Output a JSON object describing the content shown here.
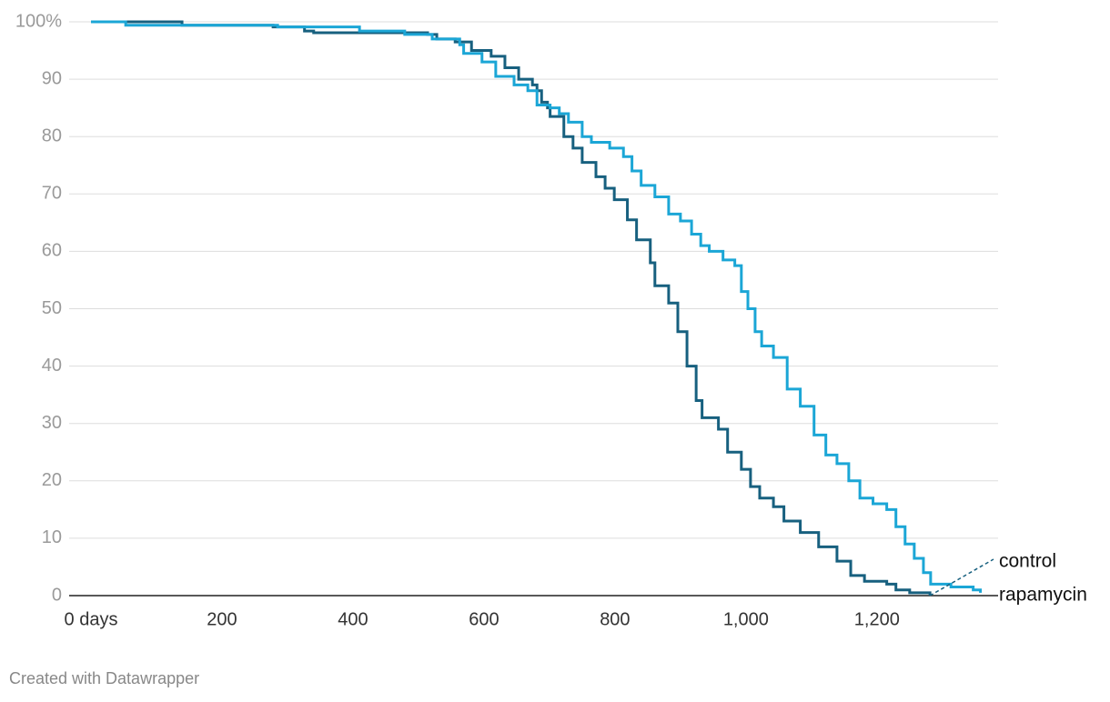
{
  "chart_data": {
    "type": "line",
    "step": true,
    "credit": "Created with Datawrapper",
    "xlim": [
      0,
      1385
    ],
    "ylim": [
      0,
      100
    ],
    "xticks": [
      {
        "value": 0,
        "label": "0 days"
      },
      200,
      400,
      600,
      800,
      {
        "value": 1000,
        "label": "1,000"
      },
      {
        "value": 1200,
        "label": "1,200"
      }
    ],
    "yticks": [
      0,
      10,
      20,
      30,
      40,
      50,
      60,
      70,
      80,
      90,
      {
        "value": 100,
        "label": "100%"
      }
    ],
    "grid": true,
    "series": [
      {
        "name": "control",
        "color": "#17607f",
        "x": [
          0,
          139,
          278,
          326,
          340,
          514,
          528,
          556,
          581,
          611,
          632,
          653,
          674,
          681,
          688,
          697,
          701,
          722,
          736,
          750,
          771,
          785,
          799,
          819,
          833,
          854,
          861,
          882,
          896,
          910,
          924,
          933,
          958,
          972,
          993,
          1007,
          1021,
          1042,
          1058,
          1083,
          1111,
          1139,
          1160,
          1181,
          1215,
          1229,
          1250,
          1281
        ],
        "values": [
          100,
          99.4,
          99.1,
          98.4,
          98.1,
          97.8,
          97,
          96.5,
          95,
          94,
          92,
          90,
          89,
          88,
          86,
          85,
          83.5,
          80,
          78,
          75.5,
          73,
          71,
          69,
          65.5,
          62,
          58,
          54,
          51,
          46,
          40,
          34,
          31,
          29,
          25,
          22,
          19,
          17,
          15.5,
          13,
          11,
          8.5,
          6,
          3.5,
          2.5,
          2,
          1,
          0.5,
          0
        ]
      },
      {
        "name": "rapamycin",
        "color": "#1ba6d6",
        "x": [
          0,
          53,
          285,
          410,
          479,
          521,
          563,
          569,
          597,
          618,
          646,
          667,
          681,
          701,
          715,
          729,
          750,
          764,
          792,
          813,
          826,
          840,
          861,
          882,
          900,
          917,
          931,
          944,
          965,
          983,
          993,
          1003,
          1014,
          1024,
          1042,
          1063,
          1083,
          1104,
          1122,
          1139,
          1157,
          1174,
          1194,
          1215,
          1229,
          1243,
          1257,
          1271,
          1282,
          1313,
          1347,
          1358
        ],
        "values": [
          100,
          99.4,
          99.1,
          98.4,
          97.8,
          97,
          96,
          94.5,
          93,
          90.5,
          89,
          88,
          85.5,
          85,
          84,
          82.5,
          80,
          79,
          78,
          76.5,
          74,
          71.5,
          69.5,
          66.5,
          65.3,
          63,
          61,
          60,
          58.5,
          57.5,
          53,
          50,
          46,
          43.5,
          41.5,
          36,
          33,
          28,
          24.5,
          23,
          20,
          17,
          16,
          15,
          12,
          9,
          6.5,
          4,
          2,
          1.5,
          1,
          0.5
        ]
      }
    ]
  }
}
